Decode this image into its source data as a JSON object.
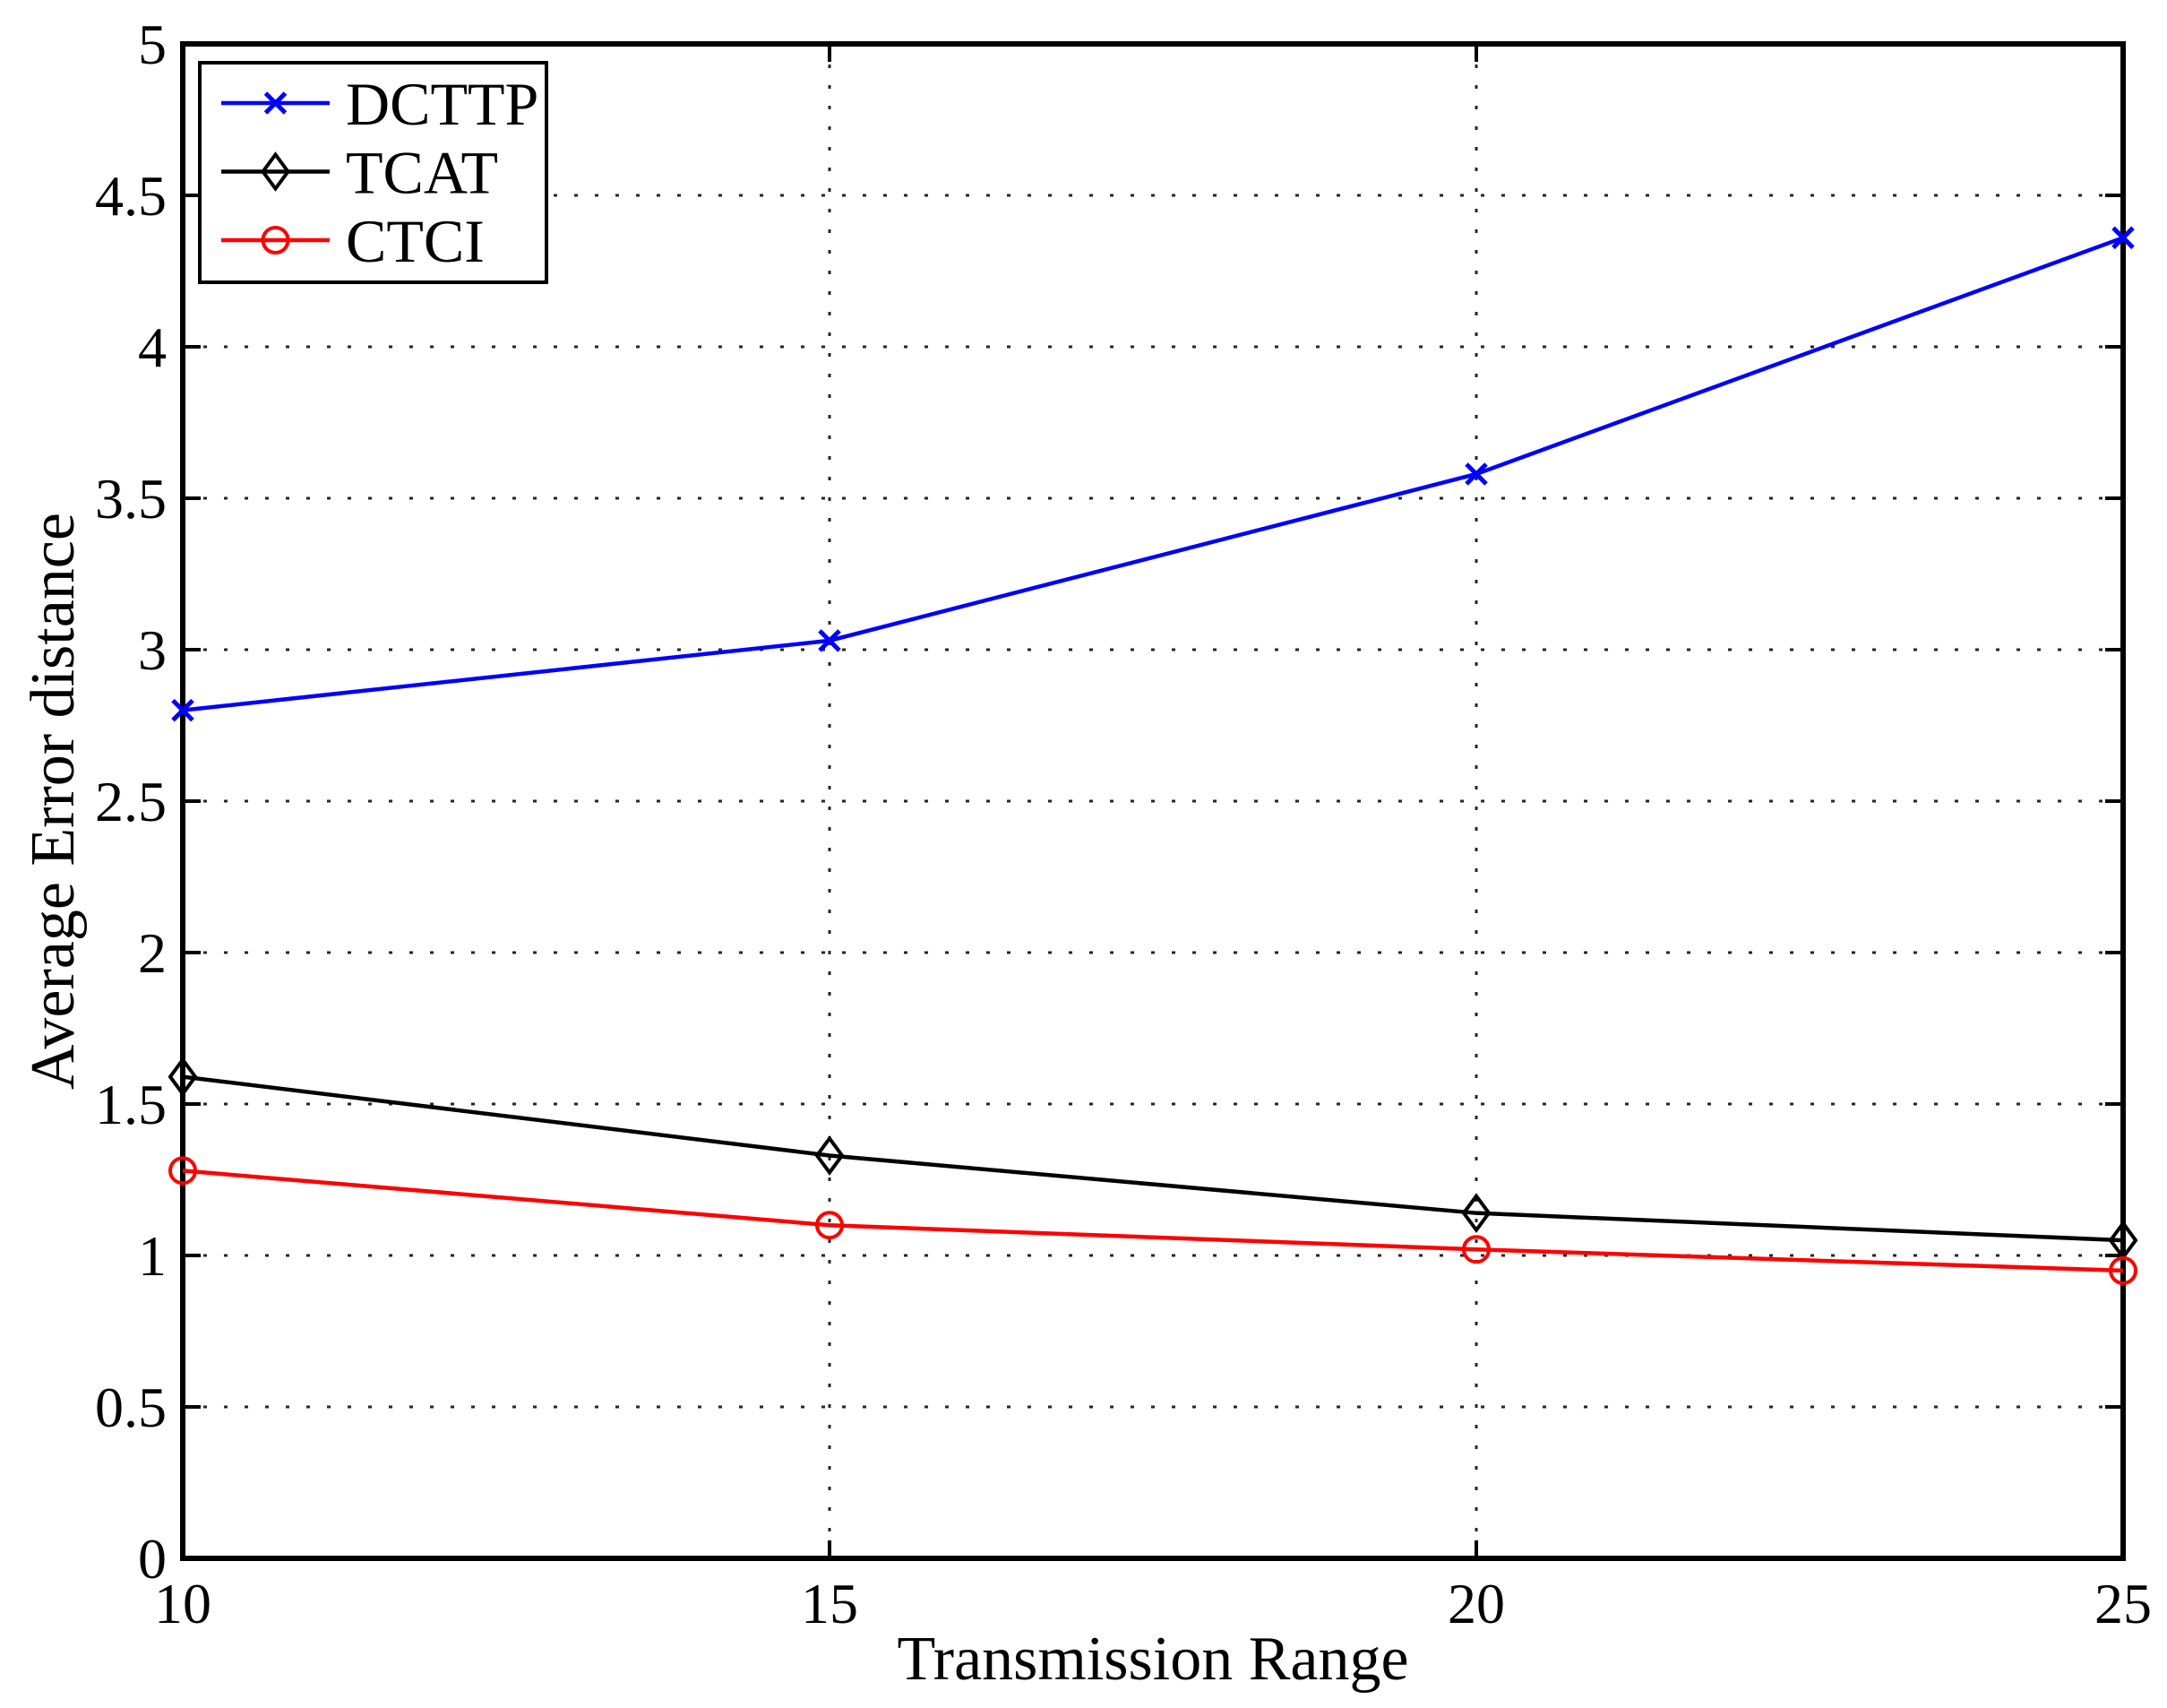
{
  "figure": {
    "background": "#ffffff"
  },
  "chart_data": {
    "type": "line",
    "title": "",
    "xlabel": "Transmission Range",
    "ylabel": "Average Error distance",
    "x": [
      10,
      15,
      20,
      25
    ],
    "xlim": [
      10,
      25
    ],
    "ylim": [
      0,
      5
    ],
    "xtick_labels": [
      "10",
      "15",
      "20",
      "25"
    ],
    "ytick_labels": [
      "0",
      "0.5",
      "1",
      "1.5",
      "2",
      "2.5",
      "3",
      "3.5",
      "4",
      "4.5",
      "5"
    ],
    "grid": true,
    "grid_style": "dotted",
    "legend_position": "top-left",
    "axis_color": "#000000",
    "series": [
      {
        "name": "DCTTP",
        "color": "#0000ff",
        "marker": "x",
        "values": [
          2.8,
          3.03,
          3.58,
          4.36
        ]
      },
      {
        "name": "TCAT",
        "color": "#000000",
        "marker": "diamond",
        "values": [
          1.59,
          1.33,
          1.14,
          1.05
        ]
      },
      {
        "name": "CTCI",
        "color": "#ff0000",
        "marker": "circle",
        "values": [
          1.28,
          1.1,
          1.02,
          0.95
        ]
      }
    ]
  }
}
